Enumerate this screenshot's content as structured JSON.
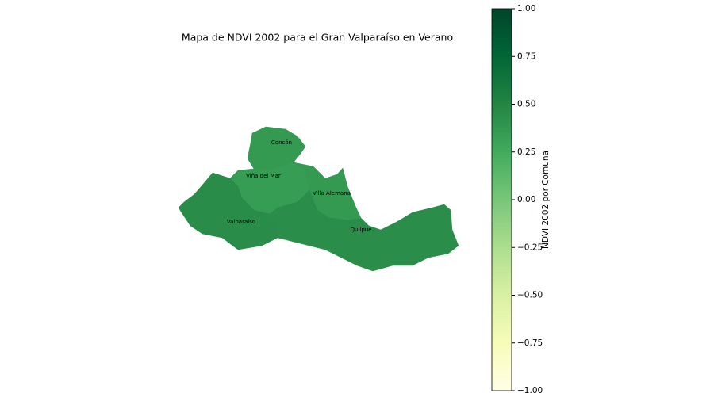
{
  "chart_data": {
    "type": "choropleth",
    "title": "Mapa de NDVI 2002 para el Gran Valparaíso en Verano",
    "categories": [
      "Concón",
      "Viña del Mar",
      "Villa Alemana",
      "Valparaíso",
      "Quilpué"
    ],
    "values": [
      0.36,
      0.34,
      0.36,
      0.45,
      0.44
    ],
    "colormap": "YlGn",
    "colorbar_label": "NDVI 2002 por Comuna",
    "ylim": [
      -1,
      1
    ],
    "yticks": [
      {
        "value": -1,
        "label": "−1.00"
      },
      {
        "value": -0.75,
        "label": "−0.75"
      },
      {
        "value": -0.5,
        "label": "−0.50"
      },
      {
        "value": -0.25,
        "label": "−0.25"
      },
      {
        "value": 0,
        "label": "0.00"
      },
      {
        "value": 0.25,
        "label": "0.25"
      },
      {
        "value": 0.5,
        "label": "0.50"
      },
      {
        "value": 0.75,
        "label": "0.75"
      },
      {
        "value": 1,
        "label": "1.00"
      }
    ]
  }
}
